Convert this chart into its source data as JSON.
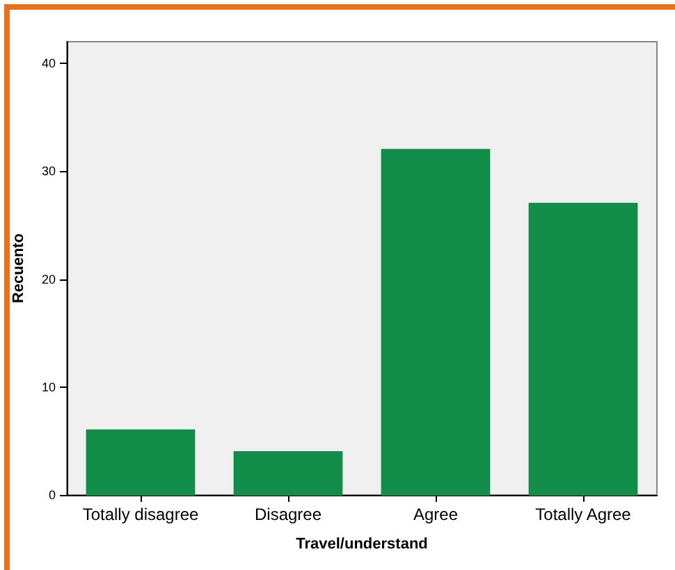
{
  "chart_data": {
    "type": "bar",
    "xlabel": "Travel/understand",
    "ylabel": "Recuento",
    "categories": [
      "Totally disagree",
      "Disagree",
      "Agree",
      "Totally Agree"
    ],
    "values": [
      6,
      4,
      32,
      27
    ],
    "color": "#138d4a",
    "ylim": [
      0,
      42
    ],
    "yticks": [
      0,
      10,
      20,
      30,
      40
    ],
    "grid": false
  }
}
